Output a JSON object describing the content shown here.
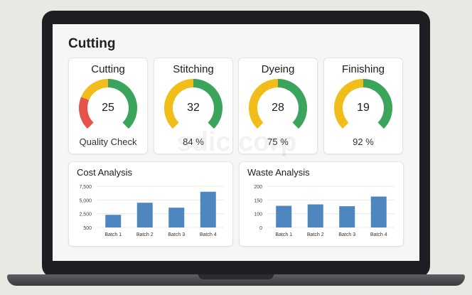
{
  "page": {
    "title": "Cutting",
    "watermark": "sdic corp"
  },
  "colors": {
    "red": "#e5534b",
    "yellow": "#f0bd1b",
    "green": "#3aa55b",
    "bar": "#4e86bf",
    "track": "#e6e6e6"
  },
  "gauges": [
    {
      "title": "Cutting",
      "value": "25",
      "label": "Quality Check",
      "segments": [
        {
          "color": "red",
          "fraction": 0.25
        },
        {
          "color": "yellow",
          "fraction": 0.25
        },
        {
          "color": "green",
          "fraction": 0.5
        }
      ]
    },
    {
      "title": "Stitching",
      "value": "32",
      "label": "84 %",
      "segments": [
        {
          "color": "yellow",
          "fraction": 0.5
        },
        {
          "color": "green",
          "fraction": 0.5
        }
      ]
    },
    {
      "title": "Dyeing",
      "value": "28",
      "label": "75 %",
      "segments": [
        {
          "color": "yellow",
          "fraction": 0.5
        },
        {
          "color": "green",
          "fraction": 0.5
        }
      ]
    },
    {
      "title": "Finishing",
      "value": "19",
      "label": "92 %",
      "segments": [
        {
          "color": "yellow",
          "fraction": 0.5
        },
        {
          "color": "green",
          "fraction": 0.5
        }
      ]
    }
  ],
  "chart_data": [
    {
      "type": "bar",
      "title": "Cost Analysis",
      "categories": [
        "Batch 1",
        "Batch 2",
        "Batch 3",
        "Batch 4"
      ],
      "values": [
        2300,
        4500,
        3600,
        6500
      ],
      "yticks": [
        "7,500",
        "5,000",
        "2,500",
        "500"
      ],
      "ylim": [
        0,
        7500
      ],
      "grid": true
    },
    {
      "type": "bar",
      "title": "Waste Analysis",
      "categories": [
        "Batch 1",
        "Batch 2",
        "Batch 3",
        "Batch 4"
      ],
      "values": [
        105,
        112,
        103,
        150
      ],
      "yticks": [
        "200",
        "150",
        "100",
        "0"
      ],
      "ylim": [
        0,
        200
      ],
      "grid": true
    }
  ]
}
